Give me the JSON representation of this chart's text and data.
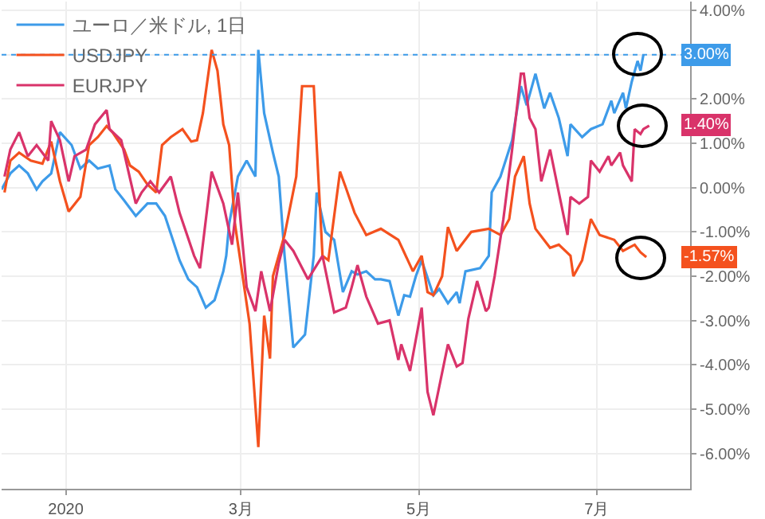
{
  "chart_data": {
    "type": "line",
    "legend": "top left",
    "grid": true,
    "line_style": "solid",
    "marker": "none",
    "xlim": [
      "2019-12-10",
      "2020-08-02"
    ],
    "xticks": [
      {
        "value": "2020-01-01",
        "label": "2020"
      },
      {
        "value": "2020-03-01",
        "label": "3月"
      },
      {
        "value": "2020-05-01",
        "label": "5月"
      },
      {
        "value": "2020-07-01",
        "label": "7月"
      }
    ],
    "ylim": [
      -6.8,
      4.2
    ],
    "yticks": [
      {
        "value": 4,
        "label": "4.00%"
      },
      {
        "value": 3,
        "label": null
      },
      {
        "value": 2,
        "label": "2.00%"
      },
      {
        "value": 1,
        "label": "1.00%"
      },
      {
        "value": 0,
        "label": "0.00%"
      },
      {
        "value": -1,
        "label": "-1.00%"
      },
      {
        "value": -2,
        "label": "-2.00%"
      },
      {
        "value": -3,
        "label": "-3.00%"
      },
      {
        "value": -4,
        "label": "-4.00%"
      },
      {
        "value": -5,
        "label": "-5.00%"
      },
      {
        "value": -6,
        "label": "-6.00%"
      }
    ],
    "ref_lines": [
      {
        "axis": "y",
        "value": 3,
        "color": "#3d9be9",
        "line_style": "dotted"
      }
    ],
    "annotations": [
      {
        "text": "3.00%",
        "x": "2020-07-17",
        "y": 3.0
      },
      {
        "text": "1.40%",
        "x": "2020-07-19",
        "y": 1.4
      },
      {
        "text": "-1.57%",
        "x": "2020-07-18",
        "y": -1.57
      }
    ],
    "series": [
      {
        "name": "ユーロ／米ドル, 1日",
        "color": "#3d9be9",
        "x": [
          "2019-12-10",
          "2019-12-13",
          "2019-12-16",
          "2019-12-19",
          "2019-12-22",
          "2019-12-24",
          "2019-12-27",
          "2019-12-30",
          "2020-01-03",
          "2020-01-06",
          "2020-01-09",
          "2020-01-12",
          "2020-01-16",
          "2020-01-18",
          "2020-01-21",
          "2020-01-25",
          "2020-01-29",
          "2020-02-01",
          "2020-02-04",
          "2020-02-09",
          "2020-02-12",
          "2020-02-15",
          "2020-02-18",
          "2020-02-21",
          "2020-02-24",
          "2020-02-25",
          "2020-02-26",
          "2020-02-29",
          "2020-03-03",
          "2020-03-06",
          "2020-03-07",
          "2020-03-09",
          "2020-03-12",
          "2020-03-14",
          "2020-03-16",
          "2020-03-19",
          "2020-03-23",
          "2020-03-26",
          "2020-03-27",
          "2020-03-30",
          "2020-04-02",
          "2020-04-05",
          "2020-04-08",
          "2020-04-10",
          "2020-04-13",
          "2020-04-16",
          "2020-04-18",
          "2020-04-21",
          "2020-04-24",
          "2020-04-26",
          "2020-04-28",
          "2020-04-30",
          "2020-05-02",
          "2020-05-06",
          "2020-05-08",
          "2020-05-11",
          "2020-05-14",
          "2020-05-15",
          "2020-05-17",
          "2020-05-22",
          "2020-05-25",
          "2020-05-26",
          "2020-05-29",
          "2020-06-02",
          "2020-06-05",
          "2020-06-07",
          "2020-06-10",
          "2020-06-13",
          "2020-06-15",
          "2020-06-18",
          "2020-06-21",
          "2020-06-22",
          "2020-06-26",
          "2020-06-29",
          "2020-07-03",
          "2020-07-06",
          "2020-07-07",
          "2020-07-10",
          "2020-07-11",
          "2020-07-13",
          "2020-07-15",
          "2020-07-16",
          "2020-07-17"
        ],
        "values": [
          -0.04,
          0.32,
          0.5,
          0.32,
          -0.04,
          0.14,
          0.32,
          1.25,
          0.96,
          0.43,
          0.61,
          0.43,
          0.5,
          -0.04,
          -0.29,
          -0.64,
          -0.36,
          -0.36,
          -0.64,
          -1.64,
          -2.07,
          -2.25,
          -2.71,
          -2.54,
          -1.89,
          -1.54,
          -0.82,
          0.25,
          0.61,
          0.25,
          3.11,
          1.68,
          0.79,
          0.25,
          -1.54,
          -3.61,
          -3.32,
          -1.54,
          -0.11,
          -1.0,
          -1.18,
          -2.36,
          -1.89,
          -1.96,
          -1.89,
          -2.07,
          -2.07,
          -2.11,
          -2.89,
          -2.43,
          -2.46,
          -2.0,
          -1.64,
          -2.43,
          -2.29,
          -2.61,
          -2.36,
          -2.61,
          -1.89,
          -1.82,
          -1.54,
          -0.11,
          0.25,
          1.07,
          2.29,
          1.86,
          2.57,
          1.79,
          2.14,
          1.57,
          0.71,
          1.43,
          1.14,
          1.32,
          1.43,
          1.96,
          1.68,
          2.14,
          1.79,
          2.39,
          2.86,
          2.64,
          3.0
        ]
      },
      {
        "name": "USDJPY",
        "color": "#f4511e",
        "x": [
          "2019-12-11",
          "2019-12-13",
          "2019-12-16",
          "2019-12-20",
          "2019-12-24",
          "2019-12-27",
          "2019-12-30",
          "2020-01-02",
          "2020-01-06",
          "2020-01-09",
          "2020-01-12",
          "2020-01-15",
          "2020-01-17",
          "2020-01-21",
          "2020-01-23",
          "2020-01-26",
          "2020-01-29",
          "2020-02-01",
          "2020-02-03",
          "2020-02-06",
          "2020-02-10",
          "2020-02-13",
          "2020-02-15",
          "2020-02-17",
          "2020-02-20",
          "2020-02-22",
          "2020-02-24",
          "2020-02-26",
          "2020-02-28",
          "2020-03-04",
          "2020-03-07",
          "2020-03-09",
          "2020-03-11",
          "2020-03-12",
          "2020-03-16",
          "2020-03-20",
          "2020-03-22",
          "2020-03-26",
          "2020-03-27",
          "2020-03-29",
          "2020-03-31",
          "2020-04-04",
          "2020-04-06",
          "2020-04-09",
          "2020-04-13",
          "2020-04-18",
          "2020-04-24",
          "2020-04-29",
          "2020-05-02",
          "2020-05-04",
          "2020-05-06",
          "2020-05-09",
          "2020-05-11",
          "2020-05-14",
          "2020-05-19",
          "2020-05-25",
          "2020-05-29",
          "2020-06-01",
          "2020-06-03",
          "2020-06-06",
          "2020-06-08",
          "2020-06-10",
          "2020-06-15",
          "2020-06-18",
          "2020-06-22",
          "2020-06-23",
          "2020-06-26",
          "2020-06-29",
          "2020-07-02",
          "2020-07-07",
          "2020-07-10",
          "2020-07-14",
          "2020-07-16",
          "2020-07-18"
        ],
        "values": [
          -0.11,
          0.61,
          0.79,
          0.61,
          0.54,
          1.04,
          0.14,
          -0.54,
          -0.21,
          0.96,
          1.14,
          1.39,
          1.25,
          0.86,
          0.5,
          0.36,
          0.07,
          -0.11,
          0.96,
          1.14,
          1.32,
          1.04,
          1.07,
          1.68,
          3.11,
          2.64,
          1.43,
          0.96,
          -0.82,
          -3.07,
          -5.86,
          -2.89,
          -3.86,
          -2.0,
          -1.07,
          0.25,
          2.29,
          2.29,
          0.96,
          -1.54,
          -1.64,
          0.36,
          0.0,
          -0.57,
          -1.07,
          -0.93,
          -1.18,
          -1.89,
          -1.54,
          -2.36,
          -2.43,
          -2.0,
          -0.89,
          -1.43,
          -1.0,
          -0.93,
          -1.07,
          -0.71,
          0.25,
          0.71,
          -0.36,
          -0.93,
          -1.36,
          -1.29,
          -1.54,
          -2.0,
          -1.64,
          -0.71,
          -1.07,
          -1.18,
          -1.43,
          -1.29,
          -1.46,
          -1.57
        ]
      },
      {
        "name": "EURJPY",
        "color": "#d9336a",
        "x": [
          "2019-12-11",
          "2019-12-13",
          "2019-12-16",
          "2019-12-19",
          "2019-12-22",
          "2019-12-26",
          "2019-12-27",
          "2019-12-30",
          "2020-01-02",
          "2020-01-04",
          "2020-01-08",
          "2020-01-11",
          "2020-01-15",
          "2020-01-16",
          "2020-01-20",
          "2020-01-25",
          "2020-01-27",
          "2020-01-30",
          "2020-02-02",
          "2020-02-06",
          "2020-02-09",
          "2020-02-14",
          "2020-02-16",
          "2020-02-20",
          "2020-02-24",
          "2020-02-27",
          "2020-02-29",
          "2020-03-03",
          "2020-03-06",
          "2020-03-08",
          "2020-03-11",
          "2020-03-14",
          "2020-03-16",
          "2020-03-19",
          "2020-03-24",
          "2020-03-29",
          "2020-04-02",
          "2020-04-06",
          "2020-04-08",
          "2020-04-10",
          "2020-04-13",
          "2020-04-17",
          "2020-04-21",
          "2020-04-24",
          "2020-04-25",
          "2020-04-28",
          "2020-04-30",
          "2020-05-02",
          "2020-05-04",
          "2020-05-06",
          "2020-05-08",
          "2020-05-11",
          "2020-05-14",
          "2020-05-16",
          "2020-05-18",
          "2020-05-21",
          "2020-05-24",
          "2020-05-25",
          "2020-05-27",
          "2020-05-30",
          "2020-06-02",
          "2020-06-05",
          "2020-06-06",
          "2020-06-08",
          "2020-06-10",
          "2020-06-12",
          "2020-06-15",
          "2020-06-18",
          "2020-06-21",
          "2020-06-22",
          "2020-06-25",
          "2020-06-28",
          "2020-06-29",
          "2020-07-02",
          "2020-07-05",
          "2020-07-06",
          "2020-07-09",
          "2020-07-10",
          "2020-07-13",
          "2020-07-14",
          "2020-07-16",
          "2020-07-17",
          "2020-07-19"
        ],
        "values": [
          0.25,
          0.86,
          1.25,
          0.71,
          0.96,
          0.61,
          1.5,
          1.07,
          0.14,
          0.71,
          0.86,
          1.43,
          1.75,
          1.32,
          1.07,
          -0.36,
          -0.11,
          0.14,
          -0.11,
          0.25,
          -0.57,
          -1.54,
          -1.82,
          0.36,
          -0.36,
          -1.29,
          -0.11,
          -2.25,
          -2.79,
          -1.89,
          -2.79,
          -1.71,
          -1.18,
          -1.43,
          -2.07,
          -1.54,
          -2.82,
          -2.71,
          -2.25,
          -1.75,
          -2.46,
          -3.07,
          -3.0,
          -3.89,
          -3.54,
          -4.14,
          -3.43,
          -2.71,
          -4.61,
          -5.14,
          -4.5,
          -3.54,
          -4.04,
          -3.96,
          -2.96,
          -2.11,
          -2.79,
          -2.71,
          -2.0,
          -0.71,
          0.86,
          2.57,
          2.57,
          1.57,
          1.32,
          0.14,
          0.86,
          -0.11,
          -1.07,
          -0.21,
          -0.36,
          -0.21,
          0.61,
          0.36,
          0.71,
          0.5,
          0.79,
          0.5,
          0.14,
          1.32,
          1.21,
          1.32,
          1.4
        ]
      }
    ]
  }
}
